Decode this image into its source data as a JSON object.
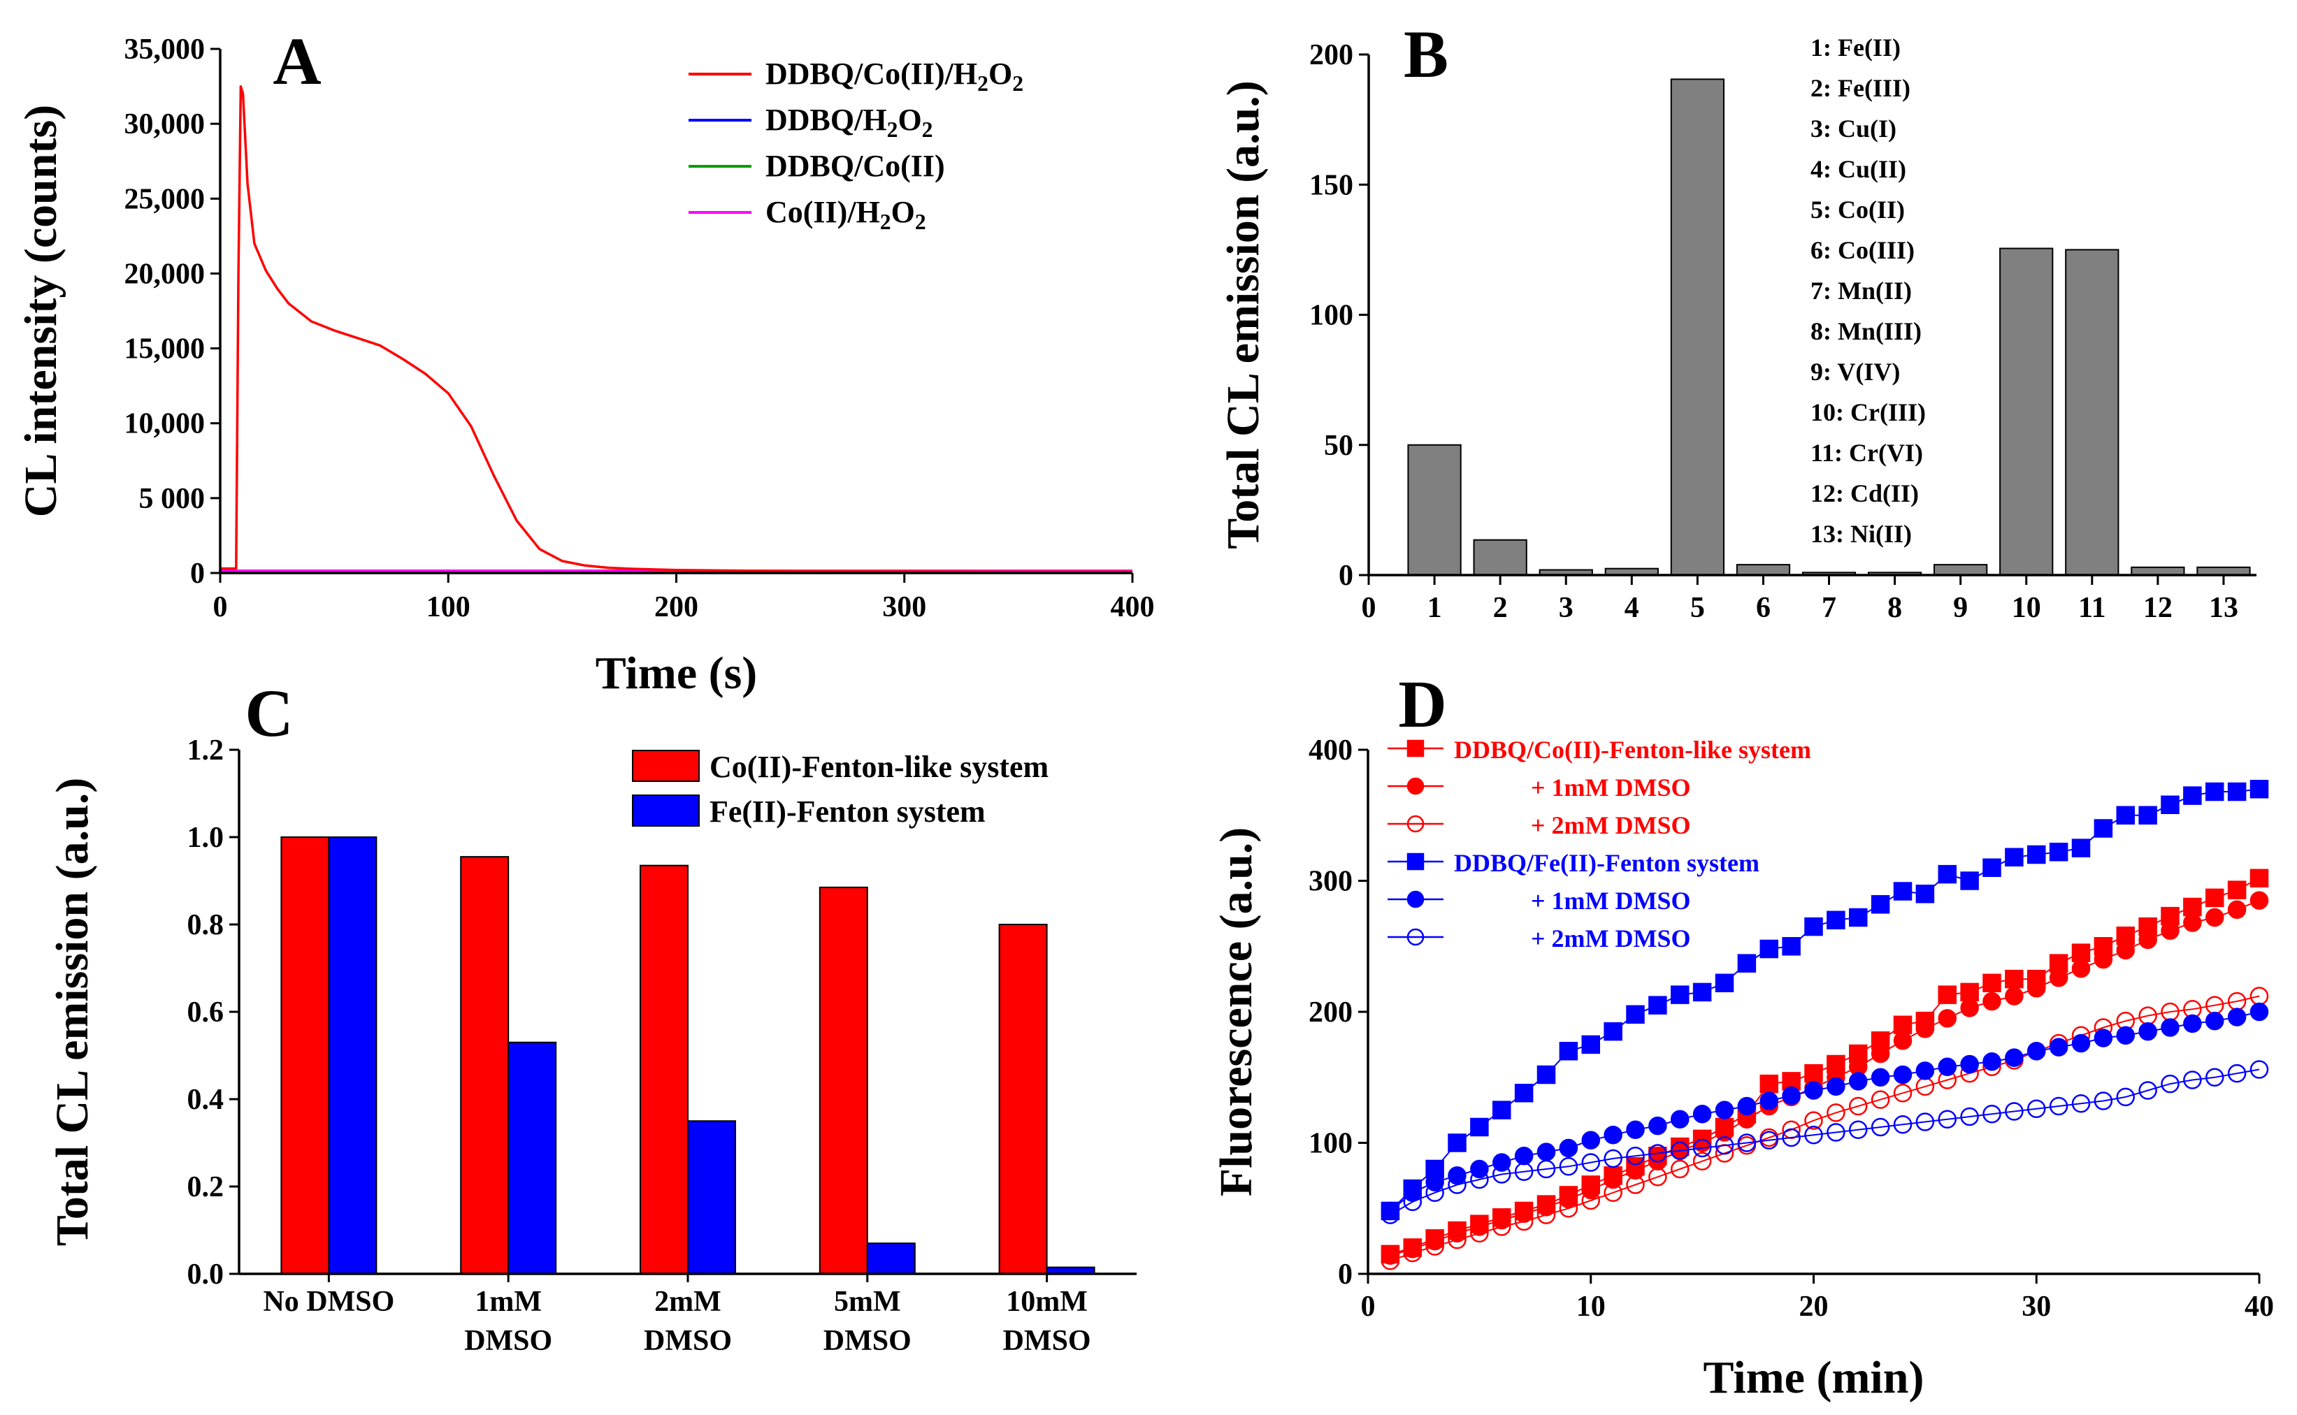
{
  "colors": {
    "red": "#ff0000",
    "blue": "#0000ff",
    "green": "#00a000",
    "magenta": "#ff00ff",
    "gray": "#808080"
  },
  "chart_data": [
    {
      "panel": "A",
      "type": "line",
      "xlabel": "Time (s)",
      "ylabel": "CL intensity (counts)",
      "xlim": [
        0,
        400
      ],
      "ylim": [
        0,
        35000
      ],
      "xticks": [
        0,
        100,
        200,
        300,
        400
      ],
      "yticks": [
        0,
        5000,
        10000,
        15000,
        20000,
        25000,
        30000,
        35000
      ],
      "ytick_labels": [
        "0",
        "5 000",
        "10,000",
        "15,000",
        "20,000",
        "25,000",
        "30,000",
        "35,000"
      ],
      "legend_position": "top-right",
      "series": [
        {
          "name": "DDBQ/Co(II)/H2O2",
          "color": "#ff0000",
          "x": [
            0,
            7,
            8,
            9,
            10,
            12,
            15,
            20,
            25,
            30,
            40,
            50,
            60,
            70,
            80,
            90,
            100,
            110,
            120,
            130,
            140,
            150,
            160,
            170,
            180,
            200,
            250,
            300,
            350,
            400
          ],
          "y": [
            300,
            300,
            20000,
            32500,
            32000,
            26000,
            22000,
            20200,
            19000,
            18000,
            16800,
            16200,
            15700,
            15200,
            14300,
            13300,
            12000,
            9800,
            6500,
            3500,
            1600,
            800,
            500,
            350,
            280,
            200,
            120,
            100,
            80,
            80
          ]
        },
        {
          "name": "DDBQ/H2O2",
          "color": "#0000ff",
          "x": [
            0,
            400
          ],
          "y": [
            100,
            100
          ]
        },
        {
          "name": "DDBQ/Co(II)",
          "color": "#00a000",
          "x": [
            0,
            400
          ],
          "y": [
            100,
            100
          ]
        },
        {
          "name": "Co(II)/H2O2",
          "color": "#ff00ff",
          "x": [
            0,
            400
          ],
          "y": [
            150,
            150
          ]
        }
      ]
    },
    {
      "panel": "B",
      "type": "bar",
      "xlabel": "",
      "ylabel": "Total CL emission (a.u.)",
      "xlim": [
        0,
        13.5
      ],
      "ylim": [
        0,
        200
      ],
      "xticks": [
        0,
        1,
        2,
        3,
        4,
        5,
        6,
        7,
        8,
        9,
        10,
        11,
        12,
        13
      ],
      "yticks": [
        0,
        50,
        100,
        150,
        200
      ],
      "categories": [
        1,
        2,
        3,
        4,
        5,
        6,
        7,
        8,
        9,
        10,
        11,
        12,
        13
      ],
      "values": [
        50,
        13.5,
        2,
        2.5,
        190.5,
        4,
        1,
        1,
        4,
        125.5,
        125,
        3,
        3
      ],
      "legend_position": "top-right",
      "legend": [
        "1: Fe(II)",
        "2: Fe(III)",
        "3: Cu(I)",
        "4: Cu(II)",
        "5: Co(II)",
        "6: Co(III)",
        "7: Mn(II)",
        "8: Mn(III)",
        "9: V(IV)",
        "10: Cr(III)",
        "11: Cr(VI)",
        "12: Cd(II)",
        "13: Ni(II)"
      ]
    },
    {
      "panel": "C",
      "type": "bar",
      "xlabel": "",
      "ylabel": "Total CL emission (a.u.)",
      "ylim": [
        0,
        1.2
      ],
      "yticks": [
        0,
        0.2,
        0.4,
        0.6,
        0.8,
        1.0,
        1.2
      ],
      "ytick_labels": [
        "0.0",
        "0.2",
        "0.4",
        "0.6",
        "0.8",
        "1.0",
        "1.2"
      ],
      "categories": [
        [
          "No DMSO"
        ],
        [
          "1mM",
          "DMSO"
        ],
        [
          "2mM",
          "DMSO"
        ],
        [
          "5mM",
          "DMSO"
        ],
        [
          "10mM",
          "DMSO"
        ]
      ],
      "legend_position": "top-right",
      "series": [
        {
          "name": "Co(II)-Fenton-like system",
          "color": "#ff0000",
          "values": [
            1.0,
            0.955,
            0.935,
            0.885,
            0.8
          ]
        },
        {
          "name": "Fe(II)-Fenton system",
          "color": "#0000ff",
          "values": [
            1.0,
            0.53,
            0.35,
            0.07,
            0.015
          ]
        }
      ]
    },
    {
      "panel": "D",
      "type": "scatter",
      "xlabel": "Time (min)",
      "ylabel": "Fluorescence (a.u.)",
      "xlim": [
        0,
        40
      ],
      "ylim": [
        0,
        400
      ],
      "xticks": [
        0,
        10,
        20,
        30,
        40
      ],
      "yticks": [
        0,
        100,
        200,
        300,
        400
      ],
      "legend_position": "top-left",
      "x": [
        1,
        2,
        3,
        4,
        5,
        6,
        7,
        8,
        9,
        10,
        11,
        12,
        13,
        14,
        15,
        16,
        17,
        18,
        19,
        20,
        21,
        22,
        23,
        24,
        25,
        26,
        27,
        28,
        29,
        30,
        31,
        32,
        33,
        34,
        35,
        36,
        37,
        38,
        39,
        40
      ],
      "series": [
        {
          "name": "DDBQ/Co(II)-Fenton-like system",
          "color": "#ff0000",
          "marker": "square",
          "filled": true,
          "values": [
            15,
            20,
            27,
            33,
            38,
            43,
            48,
            53,
            60,
            68,
            75,
            82,
            90,
            97,
            103,
            112,
            122,
            145,
            147,
            153,
            160,
            168,
            178,
            190,
            193,
            213,
            215,
            222,
            225,
            225,
            237,
            245,
            250,
            258,
            265,
            273,
            280,
            287,
            293,
            302
          ]
        },
        {
          "name": "+ 1mM DMSO",
          "color": "#ff0000",
          "marker": "circle",
          "filled": true,
          "values": [
            14,
            19,
            25,
            31,
            36,
            41,
            46,
            51,
            57,
            64,
            72,
            79,
            86,
            94,
            100,
            108,
            118,
            128,
            135,
            142,
            150,
            158,
            168,
            178,
            187,
            195,
            203,
            208,
            212,
            218,
            226,
            233,
            240,
            247,
            255,
            262,
            268,
            272,
            278,
            285
          ]
        },
        {
          "name": "+ 2mM DMSO",
          "color": "#ff0000",
          "marker": "circle",
          "filled": false,
          "values": [
            10,
            16,
            21,
            26,
            31,
            36,
            40,
            45,
            50,
            56,
            62,
            68,
            74,
            80,
            86,
            92,
            98,
            104,
            110,
            117,
            123,
            128,
            133,
            138,
            143,
            148,
            153,
            158,
            163,
            170,
            176,
            182,
            188,
            193,
            197,
            200,
            202,
            205,
            208,
            212
          ]
        },
        {
          "name": "DDBQ/Fe(II)-Fenton system",
          "color": "#0000ff",
          "marker": "square",
          "filled": true,
          "values": [
            48,
            65,
            80,
            100,
            112,
            125,
            138,
            152,
            170,
            175,
            185,
            198,
            205,
            213,
            215,
            222,
            237,
            248,
            250,
            265,
            270,
            272,
            282,
            292,
            290,
            305,
            300,
            310,
            318,
            320,
            322,
            325,
            340,
            350,
            350,
            358,
            365,
            368,
            368,
            370
          ]
        },
        {
          "name": "+ 1mM DMSO",
          "color": "#0000ff",
          "marker": "circle",
          "filled": true,
          "values": [
            48,
            62,
            70,
            75,
            80,
            85,
            90,
            93,
            96,
            102,
            106,
            110,
            113,
            118,
            122,
            125,
            128,
            132,
            136,
            140,
            143,
            147,
            150,
            152,
            155,
            158,
            160,
            162,
            165,
            170,
            173,
            176,
            180,
            182,
            185,
            188,
            191,
            193,
            196,
            200
          ]
        },
        {
          "name": "+ 2mM DMSO",
          "color": "#0000ff",
          "marker": "circle",
          "filled": false,
          "values": [
            45,
            55,
            62,
            68,
            72,
            76,
            78,
            80,
            82,
            85,
            88,
            90,
            92,
            94,
            96,
            98,
            100,
            102,
            104,
            106,
            108,
            110,
            112,
            114,
            116,
            118,
            120,
            122,
            124,
            126,
            128,
            130,
            132,
            135,
            140,
            145,
            148,
            150,
            153,
            156
          ]
        }
      ]
    }
  ]
}
